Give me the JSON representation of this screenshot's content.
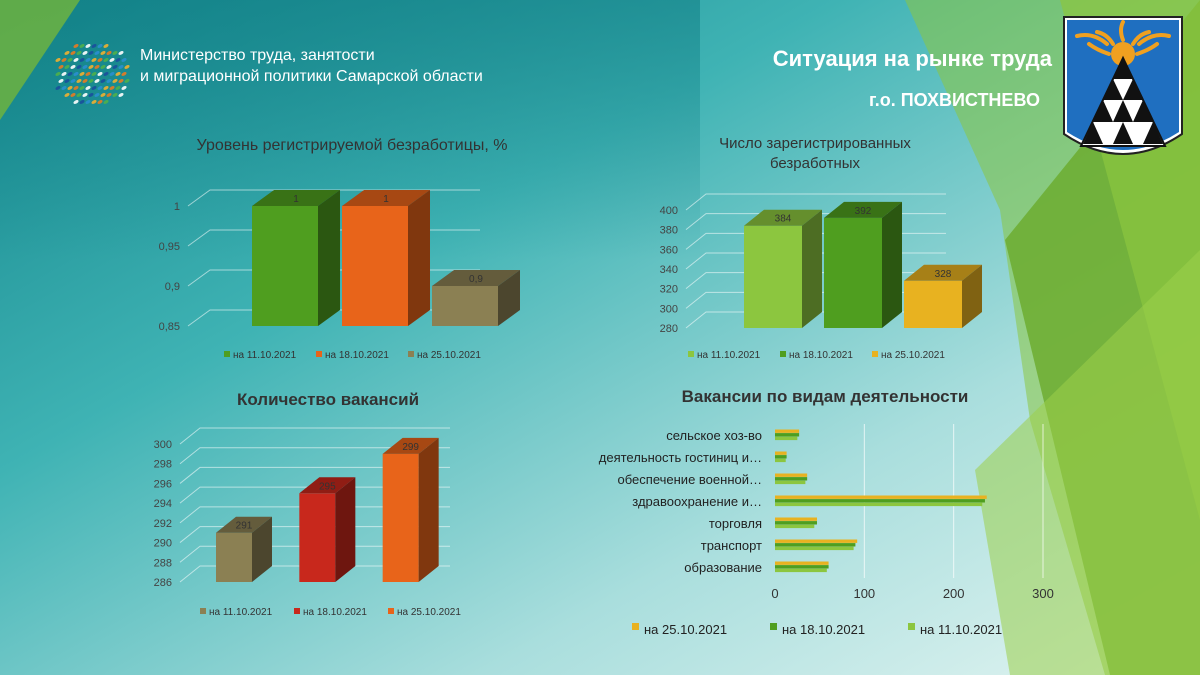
{
  "header": {
    "ministry_line1": "Министерство труда, занятости",
    "ministry_line2": "и миграционной политики  Самарской области",
    "title": "Ситуация на рынке труда",
    "subtitle": "г.о. ПОХВИСТНЕВО"
  },
  "icons": {
    "logo": "ministry-logo-icon",
    "emblem": "city-coat-of-arms-icon"
  },
  "colors": {
    "bg_left": "#1e9aa0",
    "bg_right": "#c9ecec",
    "green_band": "#7ab52b",
    "green": "#4f9e1f",
    "orange": "#e8641a",
    "khaki": "#8b8053",
    "lime": "#8cc63f",
    "yellow": "#e8b220",
    "red": "#c8281c"
  },
  "chart_data": [
    {
      "type": "bar",
      "title": "Уровень регистрируемой  безработицы, %",
      "ylim": [
        0.85,
        1.0
      ],
      "yticks": [
        "0,85",
        "0,9",
        "0,95",
        "1"
      ],
      "series": [
        {
          "name": "на 11.10.2021",
          "value": 1,
          "label": "1",
          "color": "#4f9e1f"
        },
        {
          "name": "на 18.10.2021",
          "value": 1,
          "label": "1",
          "color": "#e8641a"
        },
        {
          "name": "на 25.10.2021",
          "value": 0.9,
          "label": "0,9",
          "color": "#8b8053"
        }
      ]
    },
    {
      "type": "bar",
      "title": "Число зарегистрированных безработных",
      "title_lines": [
        "Число зарегистрированных",
        "безработных"
      ],
      "ylim": [
        280,
        400
      ],
      "yticks": [
        "280",
        "300",
        "320",
        "340",
        "360",
        "380",
        "400"
      ],
      "series": [
        {
          "name": "на 11.10.2021",
          "value": 384,
          "label": "384",
          "color": "#8cc63f"
        },
        {
          "name": "на 18.10.2021",
          "value": 392,
          "label": "392",
          "color": "#4f9e1f"
        },
        {
          "name": "на 25.10.2021",
          "value": 328,
          "label": "328",
          "color": "#e8b220"
        }
      ]
    },
    {
      "type": "bar",
      "title": "Количество вакансий",
      "ylim": [
        286,
        300
      ],
      "yticks": [
        "286",
        "288",
        "290",
        "292",
        "294",
        "296",
        "298",
        "300"
      ],
      "series": [
        {
          "name": "на 11.10.2021",
          "value": 291,
          "label": "291",
          "color": "#8b8053"
        },
        {
          "name": "на 18.10.2021",
          "value": 295,
          "label": "295",
          "color": "#c8281c"
        },
        {
          "name": "на 25.10.2021",
          "value": 299,
          "label": "299",
          "color": "#e8641a"
        }
      ]
    },
    {
      "type": "bar",
      "orientation": "horizontal",
      "title": "Вакансии по видам деятельности",
      "categories": [
        "сельское хоз-во",
        "деятельность гостиниц и…",
        "обеспечение военной…",
        "здравоохранение и…",
        "торговля",
        "транспорт",
        "образование"
      ],
      "xlim": [
        0,
        300
      ],
      "xticks": [
        "0",
        "100",
        "200",
        "300"
      ],
      "series": [
        {
          "name": "на 25.10.2021",
          "color": "#e8b220",
          "values": [
            27,
            13,
            36,
            237,
            47,
            92,
            60
          ]
        },
        {
          "name": "на 18.10.2021",
          "color": "#4f9e1f",
          "values": [
            27,
            13,
            36,
            235,
            47,
            90,
            60
          ]
        },
        {
          "name": "на 11.10.2021",
          "color": "#8cc63f",
          "values": [
            25,
            12,
            34,
            232,
            44,
            88,
            58
          ]
        }
      ]
    }
  ]
}
